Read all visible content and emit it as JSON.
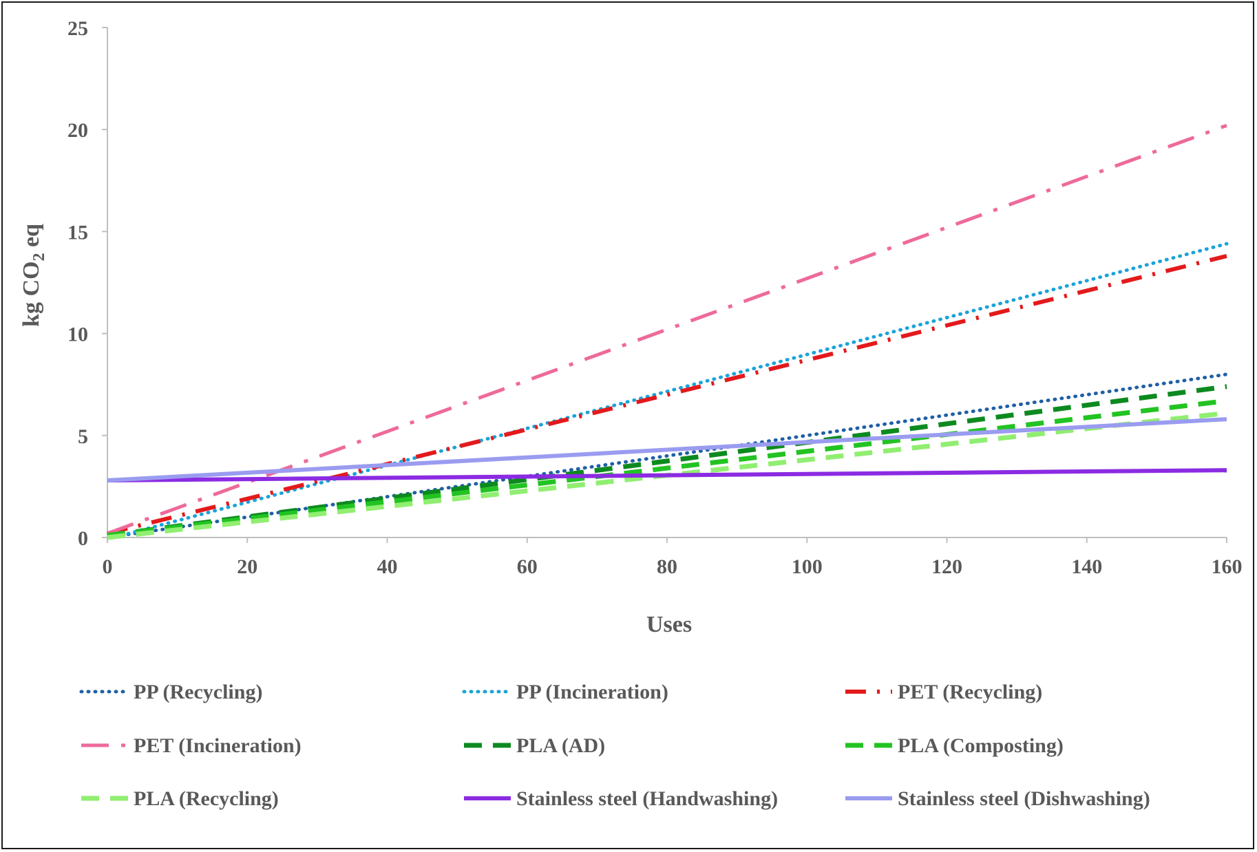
{
  "chart_data": {
    "type": "line",
    "title": "",
    "xlabel": "Uses",
    "ylabel": {
      "main": "kg CO",
      "sub": "2",
      "suffix": " eq"
    },
    "xlim": [
      0,
      160
    ],
    "ylim": [
      0,
      25
    ],
    "x_ticks": [
      0,
      20,
      40,
      60,
      80,
      100,
      120,
      140,
      160
    ],
    "y_ticks": [
      0,
      5,
      10,
      15,
      20,
      25
    ],
    "grid": false,
    "legend_position": "bottom",
    "series": [
      {
        "name": "PP (Recycling)",
        "color": "#1f5fa6",
        "dash": "dot",
        "x": [
          2,
          160
        ],
        "y": [
          0.1,
          8.0
        ]
      },
      {
        "name": "PP (Incineration)",
        "color": "#1aa3d9",
        "dash": "dot",
        "x": [
          2,
          160
        ],
        "y": [
          0.1,
          14.4
        ]
      },
      {
        "name": "PET (Recycling)",
        "color": "#e31a1c",
        "dash": "dashdot",
        "x": [
          0,
          160
        ],
        "y": [
          0.2,
          13.8
        ]
      },
      {
        "name": "PET (Incineration)",
        "color": "#ee6a9b",
        "dash": "longdashdot",
        "x": [
          0,
          160
        ],
        "y": [
          0.2,
          20.2
        ]
      },
      {
        "name": "PLA (AD)",
        "color": "#0d8a1f",
        "dash": "dash",
        "x": [
          0,
          160
        ],
        "y": [
          0.1,
          7.4
        ]
      },
      {
        "name": "PLA (Composting)",
        "color": "#22c322",
        "dash": "dash",
        "x": [
          0,
          160
        ],
        "y": [
          0.1,
          6.7
        ]
      },
      {
        "name": "PLA (Recycling)",
        "color": "#90ee70",
        "dash": "dash",
        "x": [
          0,
          160
        ],
        "y": [
          0.0,
          6.1
        ]
      },
      {
        "name": "Stainless steel (Handwashing)",
        "color": "#8b2be2",
        "dash": "solid",
        "x": [
          0,
          160
        ],
        "y": [
          2.8,
          3.3
        ]
      },
      {
        "name": "Stainless steel (Dishwashing)",
        "color": "#9a9cf0",
        "dash": "solid",
        "x": [
          0,
          160
        ],
        "y": [
          2.8,
          5.8
        ]
      }
    ]
  }
}
